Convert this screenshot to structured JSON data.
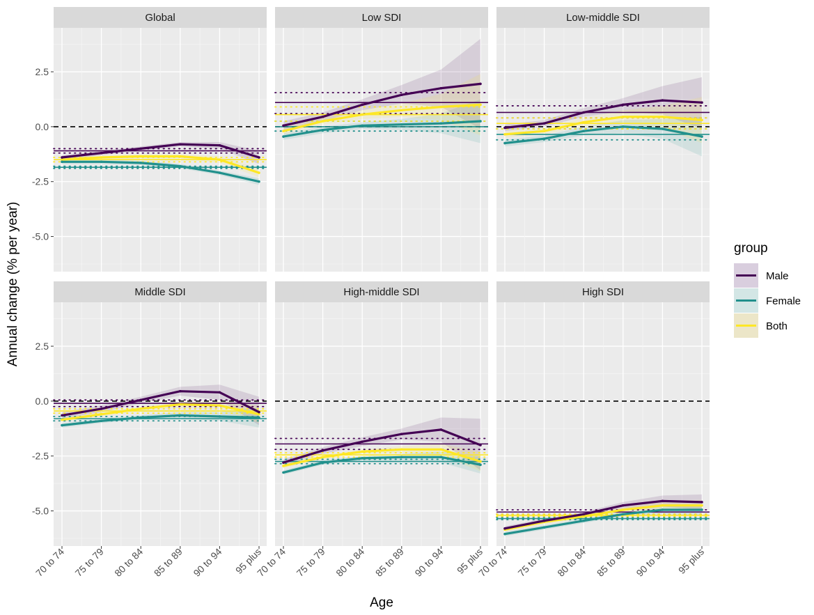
{
  "chart_data": {
    "type": "line",
    "xlabel": "Age",
    "ylabel": "Annual change (% per year)",
    "categories": [
      "70 to 74",
      "75 to 79",
      "80 to 84",
      "85 to 89",
      "90 to 94",
      "95 plus"
    ],
    "ylim": [
      -6.6,
      4.5
    ],
    "yticks": [
      {
        "value": 2.5,
        "label": "2.5"
      },
      {
        "value": 0,
        "label": "0.0"
      },
      {
        "value": -2.5,
        "label": "-2.5"
      },
      {
        "value": -5,
        "label": "-5.0"
      }
    ],
    "zero_line": 0,
    "legend": {
      "title": "group",
      "entries": [
        {
          "name": "Male",
          "color": "#440154",
          "fill": "#d9cede"
        },
        {
          "name": "Female",
          "color": "#21908c",
          "fill": "#d3e6e5"
        },
        {
          "name": "Both",
          "color": "#fde725",
          "fill": "#ece6c8"
        }
      ]
    },
    "panels": [
      {
        "title": "Global",
        "series": [
          {
            "name": "Male",
            "values": [
              -1.4,
              -1.2,
              -1.0,
              -0.8,
              -0.85,
              -1.4
            ],
            "lower": [
              -1.5,
              -1.3,
              -1.1,
              -0.9,
              -1.0,
              -1.7
            ],
            "upper": [
              -1.3,
              -1.1,
              -0.9,
              -0.7,
              -0.7,
              -1.1
            ],
            "overall": -1.1,
            "overall_ci": [
              -1.2,
              -1.0
            ]
          },
          {
            "name": "Female",
            "values": [
              -1.6,
              -1.6,
              -1.65,
              -1.8,
              -2.1,
              -2.5
            ],
            "lower": [
              -1.7,
              -1.7,
              -1.75,
              -1.9,
              -2.2,
              -2.65
            ],
            "upper": [
              -1.5,
              -1.5,
              -1.55,
              -1.7,
              -2.0,
              -2.35
            ],
            "overall": -1.85,
            "overall_ci": [
              -1.9,
              -1.8
            ]
          },
          {
            "name": "Both",
            "values": [
              -1.5,
              -1.4,
              -1.35,
              -1.35,
              -1.5,
              -2.1
            ],
            "lower": [
              -1.6,
              -1.5,
              -1.45,
              -1.45,
              -1.65,
              -2.3
            ],
            "upper": [
              -1.4,
              -1.3,
              -1.25,
              -1.25,
              -1.35,
              -1.9
            ],
            "overall": -1.5,
            "overall_ci": [
              -1.6,
              -1.4
            ]
          }
        ]
      },
      {
        "title": "Low SDI",
        "series": [
          {
            "name": "Male",
            "values": [
              0.05,
              0.45,
              1.0,
              1.45,
              1.75,
              1.95
            ],
            "lower": [
              -0.15,
              0.25,
              0.75,
              1.05,
              0.9,
              -0.1
            ],
            "upper": [
              0.25,
              0.65,
              1.25,
              1.9,
              2.6,
              4.0
            ],
            "overall": 1.1,
            "overall_ci": [
              0.6,
              1.55
            ]
          },
          {
            "name": "Female",
            "values": [
              -0.45,
              -0.15,
              0.05,
              0.1,
              0.15,
              0.25
            ],
            "lower": [
              -0.6,
              -0.3,
              -0.1,
              -0.15,
              -0.3,
              -0.75
            ],
            "upper": [
              -0.3,
              0.0,
              0.2,
              0.35,
              0.6,
              1.25
            ],
            "overall": 0.0,
            "overall_ci": [
              -0.2,
              0.25
            ]
          },
          {
            "name": "Both",
            "values": [
              -0.2,
              0.25,
              0.55,
              0.75,
              0.9,
              1.0
            ],
            "lower": [
              -0.35,
              0.1,
              0.35,
              0.45,
              0.3,
              -0.4
            ],
            "upper": [
              -0.05,
              0.4,
              0.75,
              1.05,
              1.5,
              2.4
            ],
            "overall": 0.55,
            "overall_ci": [
              0.25,
              0.9
            ]
          }
        ]
      },
      {
        "title": "Low-middle SDI",
        "series": [
          {
            "name": "Male",
            "values": [
              -0.05,
              0.15,
              0.65,
              1.0,
              1.2,
              1.1
            ],
            "lower": [
              -0.2,
              0.0,
              0.45,
              0.7,
              0.55,
              -0.1
            ],
            "upper": [
              0.1,
              0.3,
              0.85,
              1.3,
              1.85,
              2.25
            ],
            "overall": 0.65,
            "overall_ci": [
              0.4,
              0.95
            ]
          },
          {
            "name": "Female",
            "values": [
              -0.75,
              -0.55,
              -0.2,
              0.0,
              -0.1,
              -0.45
            ],
            "lower": [
              -0.9,
              -0.7,
              -0.4,
              -0.3,
              -0.55,
              -1.35
            ],
            "upper": [
              -0.6,
              -0.4,
              0.0,
              0.3,
              0.35,
              0.45
            ],
            "overall": -0.35,
            "overall_ci": [
              -0.6,
              -0.1
            ]
          },
          {
            "name": "Both",
            "values": [
              -0.35,
              -0.2,
              0.2,
              0.45,
              0.45,
              0.3
            ],
            "lower": [
              -0.5,
              -0.35,
              0.0,
              0.15,
              -0.05,
              -0.75
            ],
            "upper": [
              -0.2,
              -0.05,
              0.4,
              0.75,
              0.95,
              1.35
            ],
            "overall": 0.15,
            "overall_ci": [
              -0.1,
              0.4
            ]
          }
        ]
      },
      {
        "title": "Middle SDI",
        "series": [
          {
            "name": "Male",
            "values": [
              -0.65,
              -0.35,
              0.05,
              0.45,
              0.4,
              -0.5
            ],
            "lower": [
              -0.8,
              -0.5,
              -0.1,
              0.25,
              0.05,
              -1.1
            ],
            "upper": [
              -0.5,
              -0.2,
              0.2,
              0.65,
              0.75,
              0.2
            ],
            "overall": -0.1,
            "overall_ci": [
              -0.25,
              0.05
            ]
          },
          {
            "name": "Female",
            "values": [
              -1.1,
              -0.9,
              -0.75,
              -0.65,
              -0.7,
              -0.75
            ],
            "lower": [
              -1.2,
              -1.0,
              -0.85,
              -0.8,
              -0.9,
              -1.2
            ],
            "upper": [
              -1.0,
              -0.8,
              -0.65,
              -0.5,
              -0.5,
              -0.3
            ],
            "overall": -0.8,
            "overall_ci": [
              -0.9,
              -0.7
            ]
          },
          {
            "name": "Both",
            "values": [
              -0.85,
              -0.6,
              -0.35,
              -0.15,
              -0.2,
              -0.6
            ],
            "lower": [
              -0.95,
              -0.7,
              -0.45,
              -0.3,
              -0.4,
              -1.0
            ],
            "upper": [
              -0.75,
              -0.5,
              -0.25,
              0.0,
              0.0,
              -0.2
            ],
            "overall": -0.45,
            "overall_ci": [
              -0.55,
              -0.35
            ]
          }
        ]
      },
      {
        "title": "High-middle SDI",
        "series": [
          {
            "name": "Male",
            "values": [
              -2.8,
              -2.25,
              -1.85,
              -1.5,
              -1.3,
              -2.0
            ],
            "lower": [
              -2.95,
              -2.4,
              -2.05,
              -1.75,
              -1.85,
              -3.15
            ],
            "upper": [
              -2.65,
              -2.1,
              -1.65,
              -1.25,
              -0.75,
              -0.8
            ],
            "overall": -1.95,
            "overall_ci": [
              -2.2,
              -1.7
            ]
          },
          {
            "name": "Female",
            "values": [
              -3.25,
              -2.8,
              -2.6,
              -2.55,
              -2.55,
              -2.9
            ],
            "lower": [
              -3.35,
              -2.9,
              -2.7,
              -2.7,
              -2.8,
              -3.3
            ],
            "upper": [
              -3.15,
              -2.7,
              -2.5,
              -2.4,
              -2.3,
              -2.5
            ],
            "overall": -2.75,
            "overall_ci": [
              -2.85,
              -2.65
            ]
          },
          {
            "name": "Both",
            "values": [
              -2.95,
              -2.55,
              -2.3,
              -2.2,
              -2.2,
              -2.75
            ],
            "lower": [
              -3.05,
              -2.65,
              -2.4,
              -2.35,
              -2.45,
              -3.2
            ],
            "upper": [
              -2.85,
              -2.45,
              -2.2,
              -2.05,
              -1.95,
              -2.3
            ],
            "overall": -2.45,
            "overall_ci": [
              -2.55,
              -2.35
            ]
          }
        ]
      },
      {
        "title": "High SDI",
        "series": [
          {
            "name": "Male",
            "values": [
              -5.8,
              -5.45,
              -5.15,
              -4.75,
              -4.55,
              -4.6
            ],
            "lower": [
              -5.9,
              -5.55,
              -5.25,
              -4.9,
              -4.8,
              -4.95
            ],
            "upper": [
              -5.7,
              -5.35,
              -5.05,
              -4.6,
              -4.3,
              -4.25
            ],
            "overall": -5.05,
            "overall_ci": [
              -5.15,
              -4.95
            ]
          },
          {
            "name": "Female",
            "values": [
              -6.05,
              -5.75,
              -5.45,
              -5.15,
              -4.95,
              -4.95
            ],
            "lower": [
              -6.15,
              -5.85,
              -5.55,
              -5.25,
              -5.15,
              -5.2
            ],
            "upper": [
              -5.95,
              -5.65,
              -5.35,
              -5.05,
              -4.75,
              -4.7
            ],
            "overall": -5.35,
            "overall_ci": [
              -5.4,
              -5.3
            ]
          },
          {
            "name": "Both",
            "values": [
              -5.85,
              -5.5,
              -5.25,
              -4.95,
              -4.75,
              -4.75
            ],
            "lower": [
              -5.95,
              -5.6,
              -5.35,
              -5.05,
              -4.95,
              -5.0
            ],
            "upper": [
              -5.75,
              -5.4,
              -5.15,
              -4.85,
              -4.55,
              -4.5
            ],
            "overall": -5.2,
            "overall_ci": [
              -5.25,
              -5.15
            ]
          }
        ]
      }
    ]
  }
}
